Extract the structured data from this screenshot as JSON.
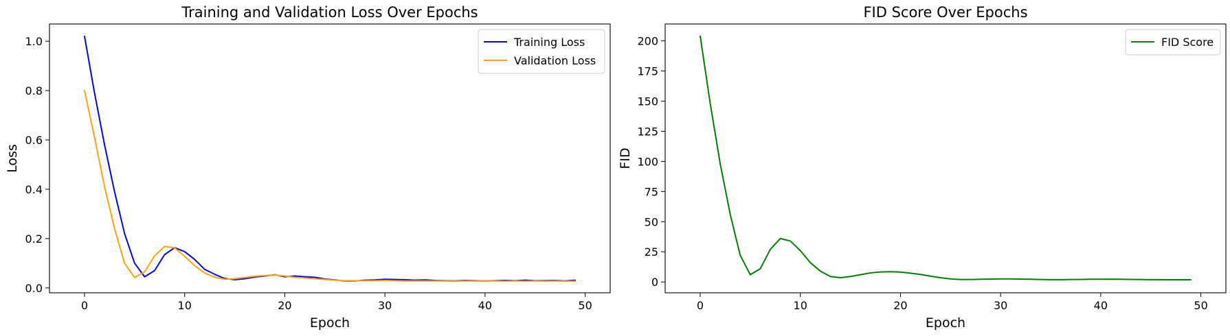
{
  "chart_data": [
    {
      "type": "line",
      "title": "Training and Validation Loss Over Epochs",
      "xlabel": "Epoch",
      "ylabel": "Loss",
      "xlim": [
        -3.5,
        52.5
      ],
      "ylim": [
        -0.02,
        1.07
      ],
      "xticks": [
        0,
        10,
        20,
        30,
        40,
        50
      ],
      "xtick_labels": [
        "0",
        "10",
        "20",
        "30",
        "40",
        "50"
      ],
      "yticks": [
        0.0,
        0.2,
        0.4,
        0.6,
        0.8,
        1.0
      ],
      "ytick_labels": [
        "0.0",
        "0.2",
        "0.4",
        "0.6",
        "0.8",
        "1.0"
      ],
      "grid": false,
      "legend_position": "top-right",
      "x": [
        0,
        1,
        2,
        3,
        4,
        5,
        6,
        7,
        8,
        9,
        10,
        11,
        12,
        13,
        14,
        15,
        16,
        17,
        18,
        19,
        20,
        21,
        22,
        23,
        24,
        25,
        26,
        27,
        28,
        29,
        30,
        31,
        32,
        33,
        34,
        35,
        36,
        37,
        38,
        39,
        40,
        41,
        42,
        43,
        44,
        45,
        46,
        47,
        48,
        49
      ],
      "series": [
        {
          "name": "Training Loss",
          "color": "#0000ff",
          "values": [
            1.02,
            0.79,
            0.58,
            0.39,
            0.22,
            0.1,
            0.045,
            0.07,
            0.135,
            0.163,
            0.147,
            0.115,
            0.075,
            0.055,
            0.038,
            0.033,
            0.037,
            0.044,
            0.048,
            0.053,
            0.045,
            0.048,
            0.045,
            0.043,
            0.036,
            0.032,
            0.028,
            0.028,
            0.031,
            0.032,
            0.035,
            0.034,
            0.033,
            0.031,
            0.032,
            0.03,
            0.029,
            0.028,
            0.03,
            0.029,
            0.028,
            0.029,
            0.03,
            0.029,
            0.031,
            0.029,
            0.029,
            0.03,
            0.028,
            0.031
          ]
        },
        {
          "name": "Validation Loss",
          "color": "#ffa500",
          "values": [
            0.8,
            0.61,
            0.41,
            0.24,
            0.1,
            0.042,
            0.065,
            0.13,
            0.168,
            0.162,
            0.128,
            0.09,
            0.06,
            0.043,
            0.035,
            0.037,
            0.042,
            0.047,
            0.05,
            0.052,
            0.048,
            0.043,
            0.04,
            0.037,
            0.034,
            0.031,
            0.029,
            0.029,
            0.029,
            0.029,
            0.03,
            0.029,
            0.028,
            0.028,
            0.028,
            0.028,
            0.028,
            0.027,
            0.028,
            0.028,
            0.028,
            0.028,
            0.027,
            0.028,
            0.027,
            0.028,
            0.027,
            0.028,
            0.027,
            0.027
          ]
        }
      ]
    },
    {
      "type": "line",
      "title": "FID Score Over Epochs",
      "xlabel": "Epoch",
      "ylabel": "FID",
      "xlim": [
        -3.5,
        52.5
      ],
      "ylim": [
        -9,
        214
      ],
      "xticks": [
        0,
        10,
        20,
        30,
        40,
        50
      ],
      "xtick_labels": [
        "0",
        "10",
        "20",
        "30",
        "40",
        "50"
      ],
      "yticks": [
        0,
        25,
        50,
        75,
        100,
        125,
        150,
        175,
        200
      ],
      "ytick_labels": [
        "0",
        "25",
        "50",
        "75",
        "100",
        "125",
        "150",
        "175",
        "200"
      ],
      "grid": false,
      "legend_position": "top-right",
      "x": [
        0,
        1,
        2,
        3,
        4,
        5,
        6,
        7,
        8,
        9,
        10,
        11,
        12,
        13,
        14,
        15,
        16,
        17,
        18,
        19,
        20,
        21,
        22,
        23,
        24,
        25,
        26,
        27,
        28,
        29,
        30,
        31,
        32,
        33,
        34,
        35,
        36,
        37,
        38,
        39,
        40,
        41,
        42,
        43,
        44,
        45,
        46,
        47,
        48,
        49
      ],
      "series": [
        {
          "name": "FID Score",
          "color": "#008000",
          "values": [
            204,
            148,
            98,
            56,
            22,
            6,
            11,
            27,
            36,
            34,
            26,
            16,
            9,
            4.5,
            3.5,
            4.5,
            6,
            7.5,
            8.3,
            8.5,
            8.2,
            7.3,
            6.2,
            4.8,
            3.5,
            2.5,
            2.0,
            2.0,
            2.2,
            2.4,
            2.5,
            2.5,
            2.4,
            2.2,
            2.0,
            1.9,
            1.9,
            2.0,
            2.1,
            2.2,
            2.2,
            2.3,
            2.2,
            2.1,
            2.0,
            1.9,
            1.9,
            1.8,
            1.8,
            1.8
          ]
        }
      ]
    }
  ]
}
